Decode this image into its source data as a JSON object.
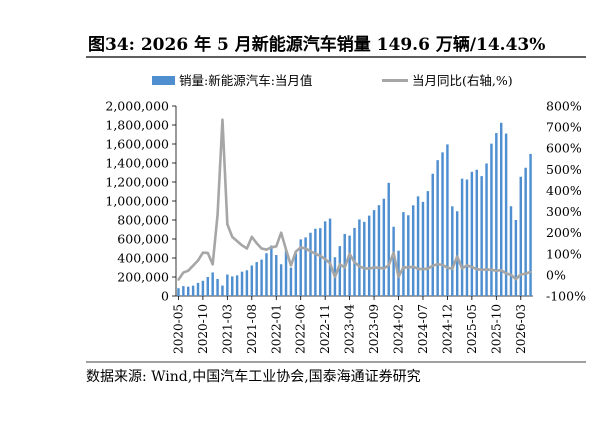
{
  "figure": {
    "title": "图34:  2026 年 5 月新能源汽车销量 149.6 万辆/14.43%",
    "source": "数据来源:  Wind,中国汽车工业协会,国泰海通证券研究"
  },
  "chart_data": {
    "type": "bar+line",
    "legend_position": "top",
    "x": [
      "2020-05",
      "2020-06",
      "2020-07",
      "2020-08",
      "2020-09",
      "2020-10",
      "2020-11",
      "2020-12",
      "2021-01",
      "2021-02",
      "2021-03",
      "2021-04",
      "2021-05",
      "2021-06",
      "2021-07",
      "2021-08",
      "2021-09",
      "2021-10",
      "2021-11",
      "2021-12",
      "2022-01",
      "2022-02",
      "2022-03",
      "2022-04",
      "2022-05",
      "2022-06",
      "2022-07",
      "2022-08",
      "2022-09",
      "2022-10",
      "2022-11",
      "2022-12",
      "2023-01",
      "2023-02",
      "2023-03",
      "2023-04",
      "2023-05",
      "2023-06",
      "2023-07",
      "2023-08",
      "2023-09",
      "2023-10",
      "2023-11",
      "2023-12",
      "2024-01",
      "2024-02",
      "2024-03",
      "2024-04",
      "2024-05",
      "2024-06",
      "2024-07",
      "2024-08",
      "2024-09",
      "2024-10",
      "2024-11",
      "2024-12",
      "2025-01",
      "2025-02",
      "2025-03",
      "2025-04",
      "2025-05",
      "2025-06",
      "2025-07",
      "2025-08",
      "2025-09",
      "2025-10",
      "2025-11",
      "2025-12",
      "2026-01",
      "2026-02",
      "2026-03",
      "2026-04",
      "2026-05"
    ],
    "x_tick_labels": [
      "2020-05",
      "2020-10",
      "2021-03",
      "2021-08",
      "2022-01",
      "2022-06",
      "2022-11",
      "2023-04",
      "2023-09",
      "2024-02",
      "2024-07",
      "2024-12",
      "2025-05",
      "2025-10",
      "2026-03"
    ],
    "series": [
      {
        "name": "销量:新能源汽车:当月值",
        "type": "bar",
        "axis": "left",
        "color": "#4f8fd0",
        "values": [
          82000,
          104000,
          98000,
          109000,
          138000,
          160000,
          200000,
          248000,
          179000,
          110000,
          226000,
          206000,
          217000,
          256000,
          271000,
          321000,
          357000,
          383000,
          450000,
          531000,
          431000,
          334000,
          484000,
          299000,
          447000,
          596000,
          617000,
          666000,
          708000,
          714000,
          786000,
          815000,
          408000,
          525000,
          653000,
          636000,
          717000,
          806000,
          780000,
          846000,
          904000,
          956000,
          1024000,
          1191000,
          729000,
          477000,
          883000,
          850000,
          955000,
          1049000,
          991000,
          1104000,
          1287000,
          1430000,
          1512000,
          1596000,
          944000,
          892000,
          1235000,
          1226000,
          1307000,
          1329000,
          1262000,
          1395000,
          1604000,
          1715000,
          1823000,
          1710000,
          945000,
          800000,
          1255000,
          1350000,
          1496000
        ]
      },
      {
        "name": "当月同比(右轴,%)",
        "type": "line",
        "axis": "right",
        "color": "#a6a6a6",
        "values": [
          -23,
          11,
          20,
          44,
          68,
          105,
          104,
          50,
          285,
          735,
          240,
          180,
          160,
          140,
          125,
          180,
          150,
          125,
          120,
          130,
          135,
          200,
          120,
          45,
          110,
          130,
          125,
          112,
          100,
          90,
          75,
          55,
          -10,
          50,
          35,
          100,
          60,
          40,
          31,
          30,
          35,
          34,
          30,
          46,
          105,
          -9,
          36,
          35,
          39,
          29,
          27,
          30,
          43,
          51,
          47,
          34,
          29,
          87,
          31,
          45,
          37,
          27,
          24,
          26,
          24,
          20,
          22,
          7,
          0,
          -20,
          2,
          6,
          14
        ]
      }
    ],
    "y_left": {
      "min": 0,
      "max": 2000000,
      "step": 200000,
      "tick_labels": [
        "0",
        "200,000",
        "400,000",
        "600,000",
        "800,000",
        "1,000,000",
        "1,200,000",
        "1,400,000",
        "1,600,000",
        "1,800,000",
        "2,000,000"
      ]
    },
    "y_right": {
      "min": -100,
      "max": 800,
      "step": 100,
      "tick_labels": [
        "-100%",
        "0%",
        "100%",
        "200%",
        "300%",
        "400%",
        "500%",
        "600%",
        "700%",
        "800%"
      ]
    },
    "grid": false
  }
}
